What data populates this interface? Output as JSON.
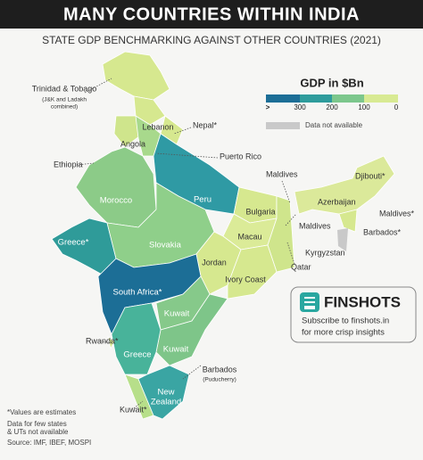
{
  "header": {
    "title": "MANY COUNTRIES WITHIN INDIA",
    "subtitle": "STATE GDP BENCHMARKING AGAINST OTHER COUNTRIES (2021)"
  },
  "legend": {
    "title": "GDP in $Bn",
    "labels": [
      ">",
      "300",
      "200",
      "100",
      "0"
    ],
    "not_available": "Data not available"
  },
  "map": {
    "labels": [
      "Trinidad & Tobago",
      "(J&K and Ladakh",
      "combined)",
      "Lebanon",
      "Nepal*",
      "Angola",
      "Puerto Rico",
      "Ethiopia",
      "Maldives",
      "Djibouti*",
      "Peru",
      "Morocco",
      "Azerbaijan",
      "Bulgaria",
      "Maldives*",
      "Maldives",
      "Barbados*",
      "Greece*",
      "Slovakia",
      "Macau",
      "Kyrgyzstan",
      "Qatar",
      "Jordan",
      "Ivory Coast",
      "South Africa*",
      "Kuwait",
      "Rwanda*",
      "Greece",
      "Kuwait",
      "Barbados",
      "(Puducherry)",
      "New",
      "Zealand",
      "Kuwait*"
    ]
  },
  "notes": [
    "*Values are estimates",
    "Data for few states",
    "& UTs not available",
    "Source: IMF, IBEF, MOSPI"
  ],
  "branding": {
    "name": "FINSHOTS",
    "tagline": [
      "Subscribe to finshots.in",
      "for more crisp insights"
    ]
  }
}
